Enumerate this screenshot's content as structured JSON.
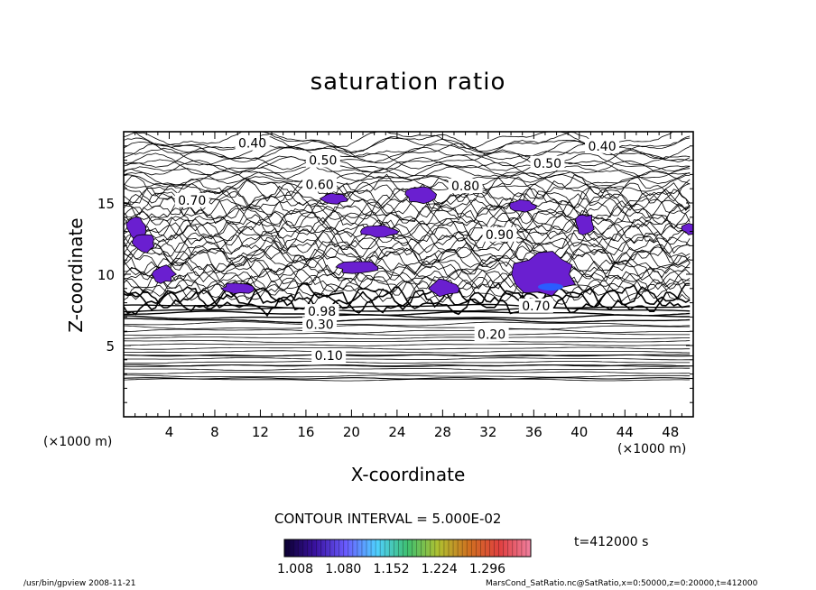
{
  "chart_data": {
    "type": "heatmap",
    "title": "saturation ratio",
    "xlabel": "X-coordinate",
    "ylabel": "Z-coordinate",
    "x_unit": "(×1000 m)",
    "y_unit": "(×1000 m)",
    "xlim": [
      0,
      50
    ],
    "ylim": [
      0,
      20
    ],
    "x_ticks": [
      4,
      8,
      12,
      16,
      20,
      24,
      28,
      32,
      36,
      40,
      44,
      48
    ],
    "y_ticks": [
      5,
      10,
      15
    ],
    "contour_interval_text": "CONTOUR INTERVAL = 5.000E-02",
    "contour_labels": [
      {
        "text": "0.10",
        "x": 18,
        "z": 4.3
      },
      {
        "text": "0.20",
        "x": 32.3,
        "z": 5.8
      },
      {
        "text": "0.30",
        "x": 17.2,
        "z": 6.5
      },
      {
        "text": "0.40",
        "x": 11.3,
        "z": 19.2
      },
      {
        "text": "0.40",
        "x": 42,
        "z": 19
      },
      {
        "text": "0.50",
        "x": 17.5,
        "z": 18
      },
      {
        "text": "0.50",
        "x": 37.2,
        "z": 17.8
      },
      {
        "text": "0.60",
        "x": 17.2,
        "z": 16.3
      },
      {
        "text": "0.70",
        "x": 6,
        "z": 15.2
      },
      {
        "text": "0.80",
        "x": 30,
        "z": 16.2
      },
      {
        "text": "0.90",
        "x": 33,
        "z": 12.8
      },
      {
        "text": "0.70",
        "x": 36.2,
        "z": 7.8
      },
      {
        "text": "0.98",
        "x": 17.4,
        "z": 7.4
      }
    ],
    "supersaturated_regions": [
      {
        "x": 1.2,
        "z": 13.2
      },
      {
        "x": 1.8,
        "z": 12.2
      },
      {
        "x": 3.5,
        "z": 10
      },
      {
        "x": 10,
        "z": 9
      },
      {
        "x": 18.5,
        "z": 15.3
      },
      {
        "x": 26,
        "z": 15.6
      },
      {
        "x": 22.5,
        "z": 13
      },
      {
        "x": 35,
        "z": 14.8
      },
      {
        "x": 20.5,
        "z": 10.5
      },
      {
        "x": 28,
        "z": 9
      },
      {
        "x": 37,
        "z": 10
      },
      {
        "x": 40.5,
        "z": 13.5
      },
      {
        "x": 49.8,
        "z": 13.2
      }
    ],
    "colorbar": {
      "min": 1.008,
      "max": 1.296,
      "ticks": [
        "1.008",
        "1.080",
        "1.152",
        "1.224",
        "1.296"
      ],
      "colors": [
        "#0b0030",
        "#3a12a0",
        "#6a5cff",
        "#4fd0ff",
        "#3fc070",
        "#b0c030",
        "#d07020",
        "#e04040",
        "#f080a0"
      ]
    },
    "time_label": "t=412000 s",
    "footer_left": "/usr/bin/gpview   2008-11-21",
    "footer_right": "MarsCond_SatRatio.nc@SatRatio,x=0:50000,z=0:20000,t=412000"
  }
}
